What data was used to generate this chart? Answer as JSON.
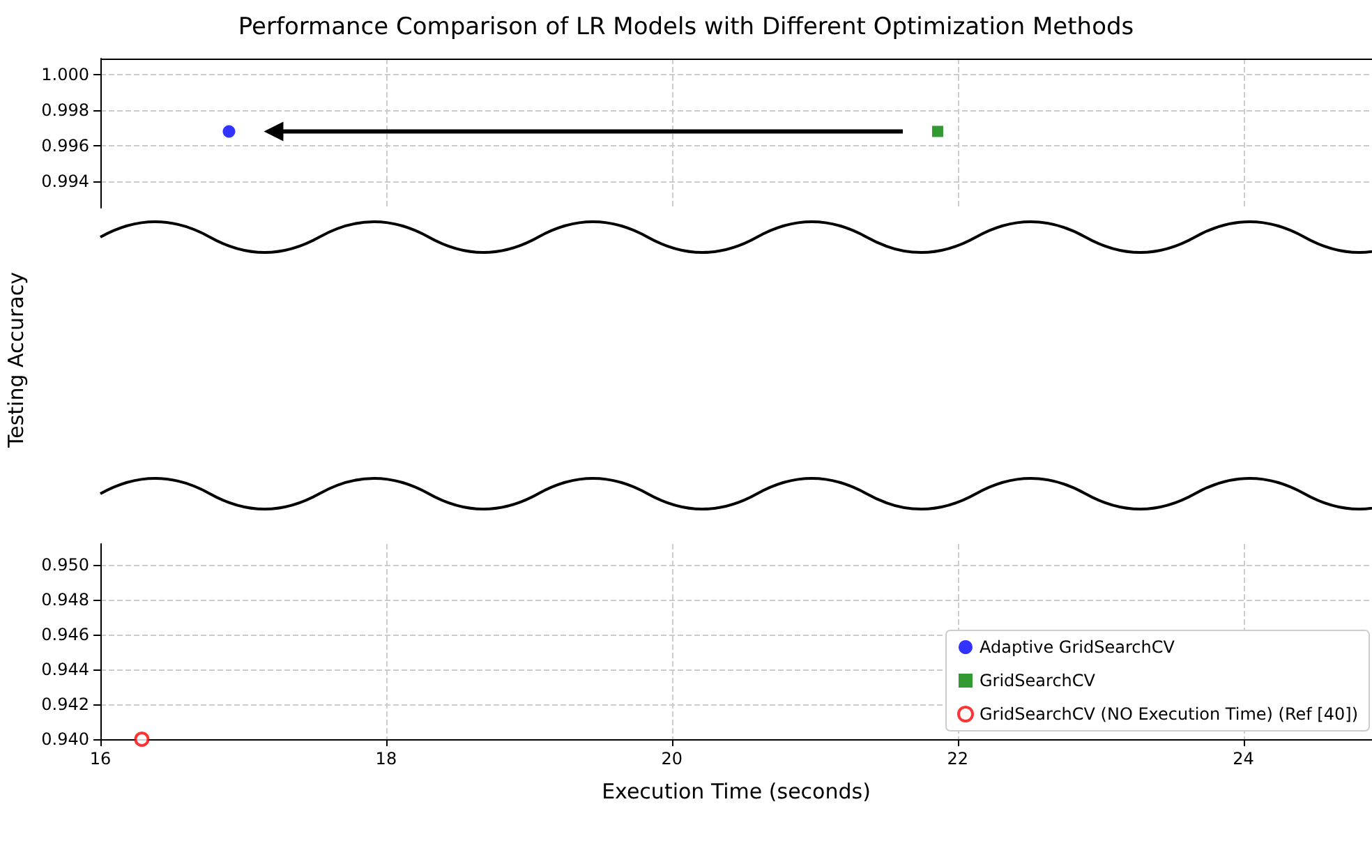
{
  "chart_data": [
    {
      "type": "scatter",
      "title": "Performance Comparison of LR Models with Different Optimization Methods",
      "legend": "bottom right",
      "series": [
        {
          "name": "Adaptive GridSearchCV",
          "color": "#0000ff",
          "marker": "circle",
          "x": [
            16.9
          ],
          "values": [
            0.9968
          ]
        },
        {
          "name": "GridSearchCV",
          "color": "#008000",
          "marker": "square",
          "x": [
            21.86
          ],
          "values": [
            0.9968
          ]
        }
      ],
      "xlim": [
        16,
        24.9
      ],
      "xticks": [
        16,
        18,
        20,
        22,
        24
      ],
      "ylim": [
        0.9925,
        1.0009
      ],
      "yticks": [
        {
          "value": 0.994,
          "label": "0.994"
        },
        {
          "value": 0.996,
          "label": "0.996"
        },
        {
          "value": 0.998,
          "label": "0.998"
        },
        {
          "value": 1.0,
          "label": "1.000"
        }
      ],
      "tick_labels": "y",
      "grid": true
    },
    {
      "type": "scatter",
      "xlabel": "Execution Time (seconds)",
      "ylabel": "Testing Accuracy",
      "series": [
        {
          "name": "GridSearchCV (NO Execution Time) (Ref [40])",
          "color": "#ff0000",
          "marker": "emptyCircle",
          "x": [
            16.29
          ],
          "values": [
            0.94
          ]
        }
      ],
      "xlim": [
        16,
        24.9
      ],
      "xticks": [
        16,
        18,
        20,
        22,
        24
      ],
      "ylim": [
        0.94,
        0.9512
      ],
      "yticks": [
        {
          "value": 0.94,
          "label": "0.940"
        },
        {
          "value": 0.942,
          "label": "0.942"
        },
        {
          "value": 0.944,
          "label": "0.944"
        },
        {
          "value": 0.946,
          "label": "0.946"
        },
        {
          "value": 0.948,
          "label": "0.948"
        },
        {
          "value": 0.95,
          "label": "0.950"
        }
      ],
      "grid": true,
      "legend": "bottom right"
    }
  ]
}
